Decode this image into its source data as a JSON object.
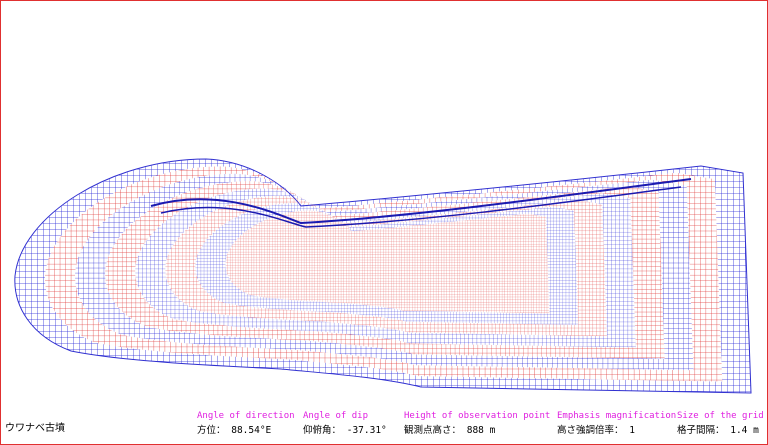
{
  "title": "ウワナベ古墳",
  "parameters": [
    {
      "label": "Angle of direction",
      "value": "方位： 88.54°E"
    },
    {
      "label": "Angle of dip",
      "value": "仰俯角： -37.31°"
    },
    {
      "label": "Height of observation point",
      "value": "観測点高さ： 888 m"
    },
    {
      "label": "Emphasis magnification",
      "value": "高さ強調倍率： 1"
    },
    {
      "label": "Size of the grid",
      "value": "格子間隔： 1.4 m"
    }
  ]
}
